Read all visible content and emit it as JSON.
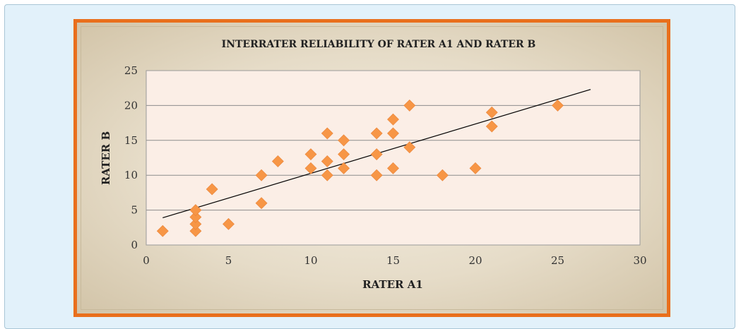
{
  "chart_data": {
    "type": "scatter",
    "title": "INTERRATER RELIABILITY OF RATER A1 AND RATER B",
    "xlabel": "RATER A1",
    "ylabel": "RATER B",
    "xlim": [
      0,
      30
    ],
    "ylim": [
      0,
      25
    ],
    "xticks": [
      0,
      5,
      10,
      15,
      20,
      25,
      30
    ],
    "yticks": [
      0,
      5,
      10,
      15,
      20,
      25
    ],
    "grid": "horizontal",
    "marker": "diamond",
    "marker_color": "#f79646",
    "trendline": {
      "type": "linear",
      "x": [
        1,
        27
      ],
      "y": [
        3.9,
        22.3
      ],
      "color": "#000000"
    },
    "points": [
      {
        "x": 1,
        "y": 2
      },
      {
        "x": 3,
        "y": 2
      },
      {
        "x": 3,
        "y": 3
      },
      {
        "x": 3,
        "y": 4
      },
      {
        "x": 3,
        "y": 5
      },
      {
        "x": 4,
        "y": 8
      },
      {
        "x": 5,
        "y": 3
      },
      {
        "x": 7,
        "y": 6
      },
      {
        "x": 7,
        "y": 10
      },
      {
        "x": 8,
        "y": 12
      },
      {
        "x": 10,
        "y": 11
      },
      {
        "x": 10,
        "y": 13
      },
      {
        "x": 11,
        "y": 10
      },
      {
        "x": 11,
        "y": 12
      },
      {
        "x": 11,
        "y": 16
      },
      {
        "x": 12,
        "y": 11
      },
      {
        "x": 12,
        "y": 13
      },
      {
        "x": 12,
        "y": 15
      },
      {
        "x": 14,
        "y": 10
      },
      {
        "x": 14,
        "y": 13
      },
      {
        "x": 14,
        "y": 16
      },
      {
        "x": 15,
        "y": 11
      },
      {
        "x": 15,
        "y": 16
      },
      {
        "x": 15,
        "y": 18
      },
      {
        "x": 16,
        "y": 14
      },
      {
        "x": 16,
        "y": 20
      },
      {
        "x": 18,
        "y": 10
      },
      {
        "x": 20,
        "y": 11
      },
      {
        "x": 21,
        "y": 17
      },
      {
        "x": 21,
        "y": 19
      },
      {
        "x": 25,
        "y": 20
      }
    ]
  },
  "colors": {
    "frame_border": "#e96f1c",
    "plot_area": "#fbeee6",
    "gridline": "#8c8c8c",
    "panel_background": "#e2f1fa"
  }
}
